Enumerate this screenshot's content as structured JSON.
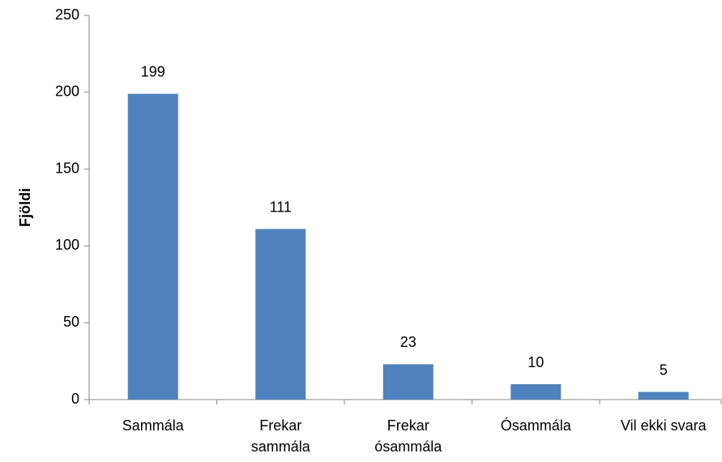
{
  "chart_data": {
    "type": "bar",
    "y_label": "Fjöldi",
    "categories": [
      "Sammála",
      "Frekar\nsammála",
      "Frekar\nósammála",
      "Ósammála",
      "Vil ekki svara"
    ],
    "values": [
      199,
      111,
      23,
      10,
      5
    ],
    "color": "#4f81bd",
    "ylim": [
      0,
      250
    ],
    "yticks": [
      0,
      50,
      100,
      150,
      200,
      250
    ],
    "grid": false,
    "data_labels": true
  }
}
